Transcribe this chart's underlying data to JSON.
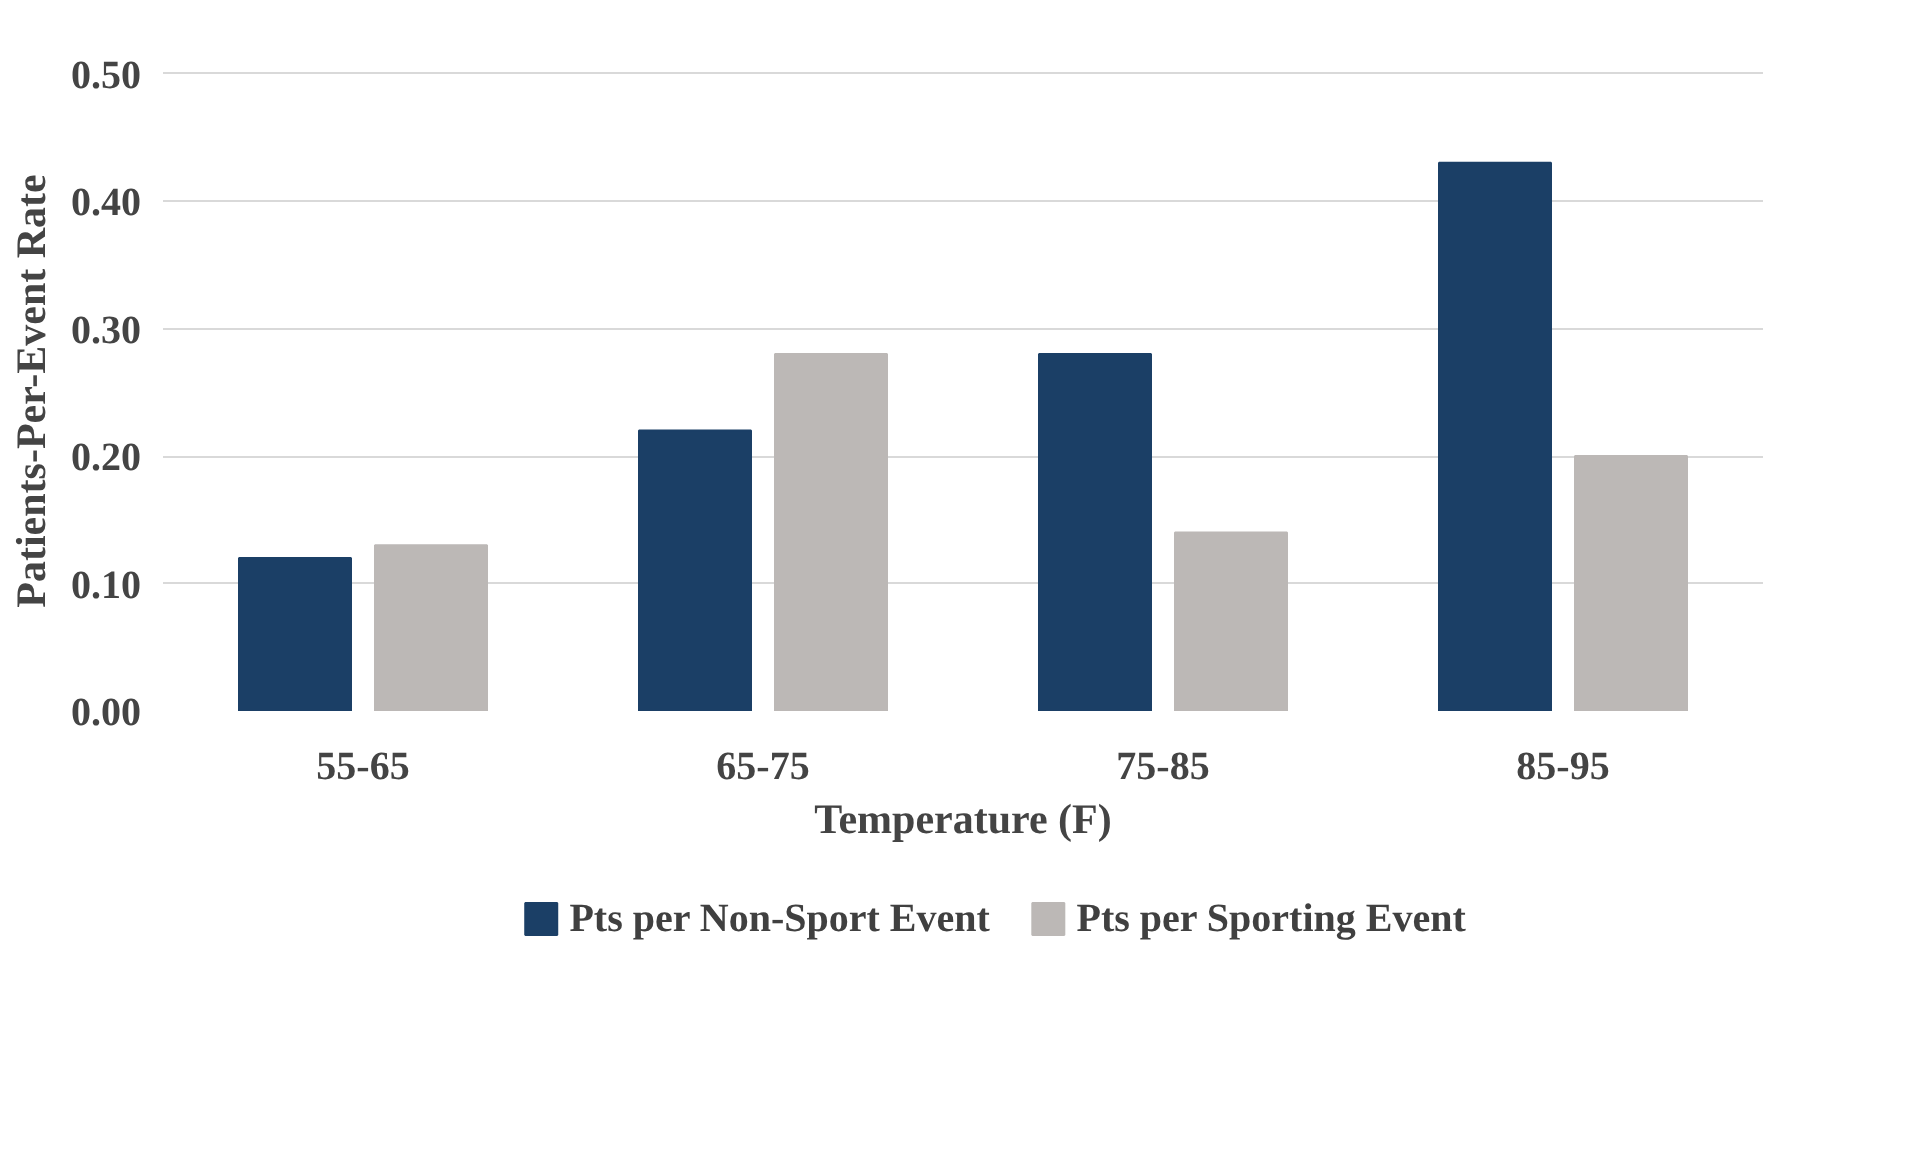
{
  "chart_data": {
    "type": "bar",
    "xlabel": "Temperature (F)",
    "ylabel": "Patients-Per-Event Rate",
    "categories": [
      "55-65",
      "65-75",
      "75-85",
      "85-95"
    ],
    "series": [
      {
        "name": "Pts per Non-Sport Event",
        "color": "#1b3f66",
        "values": [
          0.12,
          0.22,
          0.28,
          0.43
        ]
      },
      {
        "name": "Pts per Sporting Event",
        "color": "#bcb8b6",
        "values": [
          0.13,
          0.28,
          0.14,
          0.2
        ]
      }
    ],
    "ylim": [
      0,
      0.5
    ],
    "yticks": [
      {
        "value": 0,
        "label": "0.00"
      },
      {
        "value": 0.1,
        "label": "0.10"
      },
      {
        "value": 0.2,
        "label": "0.20"
      },
      {
        "value": 0.3,
        "label": "0.30"
      },
      {
        "value": 0.4,
        "label": "0.40"
      },
      {
        "value": 0.5,
        "label": "0.50"
      }
    ],
    "grid": "y",
    "legend": "bottom"
  }
}
